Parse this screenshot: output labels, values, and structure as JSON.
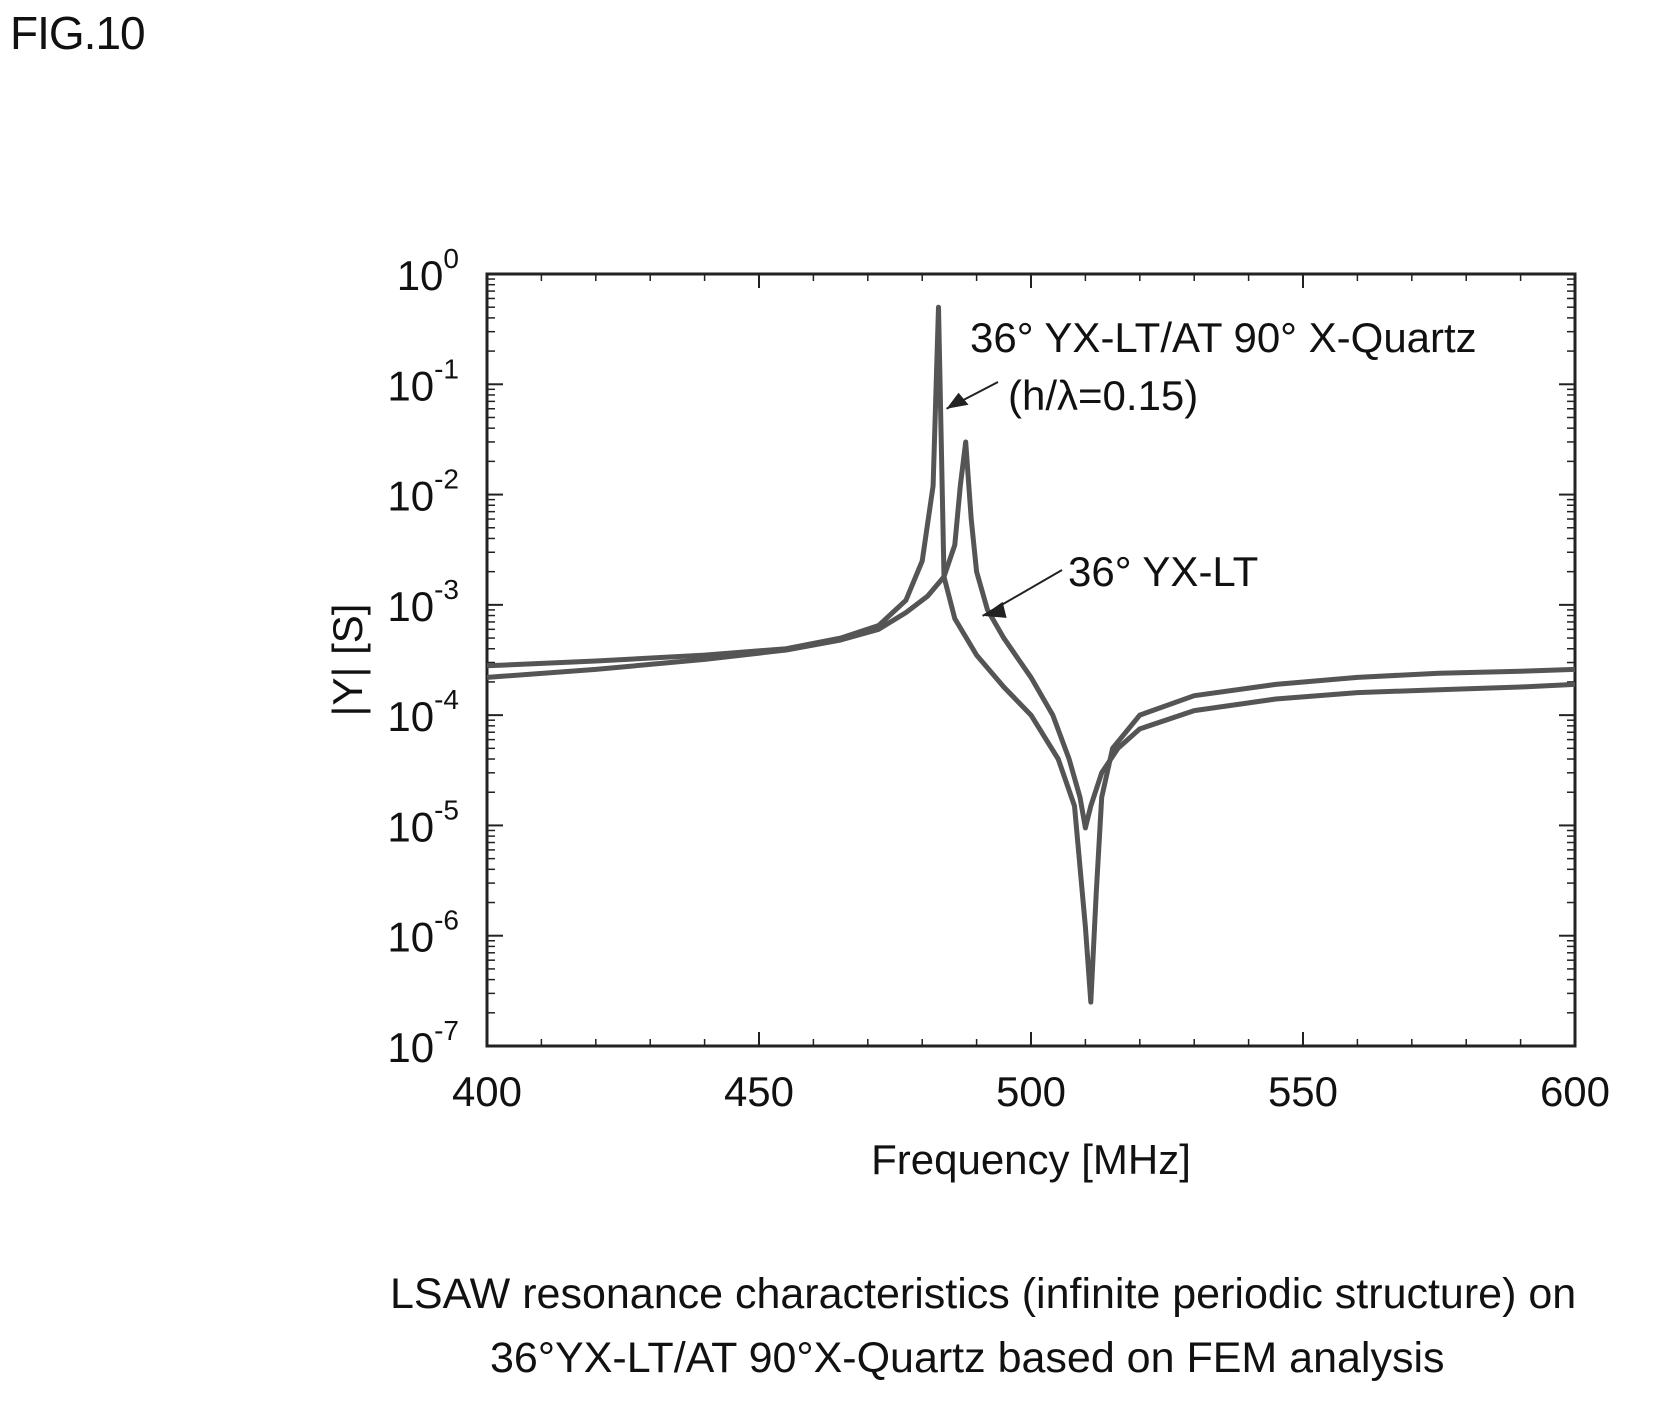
{
  "figure_label": "FIG.10",
  "caption": {
    "line1": "LSAW resonance characteristics (infinite periodic structure) on",
    "line2": "36°YX-LT/AT 90°X-Quartz based on FEM analysis"
  },
  "chart_data": {
    "type": "line",
    "xlabel": "Frequency [MHz]",
    "ylabel": "|Y| [S]",
    "xlim": [
      400,
      600
    ],
    "ylim": [
      1e-07,
      1
    ],
    "yscale": "log",
    "x_ticks": [
      "400",
      "450",
      "500",
      "550",
      "600"
    ],
    "y_ticks": [
      {
        "base": "10",
        "exp": "0"
      },
      {
        "base": "10",
        "exp": "-1"
      },
      {
        "base": "10",
        "exp": "-2"
      },
      {
        "base": "10",
        "exp": "-3"
      },
      {
        "base": "10",
        "exp": "-4"
      },
      {
        "base": "10",
        "exp": "-5"
      },
      {
        "base": "10",
        "exp": "-6"
      },
      {
        "base": "10",
        "exp": "-7"
      }
    ],
    "grid": false,
    "series": [
      {
        "name": "36° YX-LT/AT 90° X-Quartz (h/λ=0.15)",
        "x": [
          400,
          420,
          440,
          455,
          465,
          472,
          477,
          480,
          482,
          483,
          484,
          486,
          490,
          495,
          500,
          505,
          508,
          510,
          511,
          512,
          513,
          515,
          520,
          530,
          545,
          560,
          575,
          590,
          600
        ],
        "y": [
          0.00028,
          0.00031,
          0.00035,
          0.0004,
          0.0005,
          0.00065,
          0.0011,
          0.0025,
          0.012,
          0.5,
          0.0018,
          0.00075,
          0.00035,
          0.00018,
          0.0001,
          4e-05,
          1.5e-05,
          1.2e-06,
          2.5e-07,
          2.5e-06,
          1.8e-05,
          5e-05,
          0.0001,
          0.00015,
          0.00019,
          0.00022,
          0.00024,
          0.00025,
          0.00026
        ],
        "label_lines": [
          "36° YX-LT/AT 90° X-Quartz",
          "(h/λ=0.15)"
        ]
      },
      {
        "name": "36° YX-LT",
        "x": [
          400,
          420,
          440,
          455,
          465,
          472,
          477,
          481,
          484,
          486,
          487,
          488,
          489,
          490,
          492,
          495,
          500,
          504,
          507,
          509,
          510,
          511,
          513,
          516,
          520,
          530,
          545,
          560,
          575,
          590,
          600
        ],
        "y": [
          0.00022,
          0.00026,
          0.00032,
          0.00039,
          0.00048,
          0.0006,
          0.00085,
          0.0012,
          0.0018,
          0.0035,
          0.012,
          0.03,
          0.006,
          0.002,
          0.0009,
          0.0005,
          0.00022,
          0.0001,
          4e-05,
          1.8e-05,
          9.5e-06,
          1.5e-05,
          3e-05,
          5e-05,
          7.5e-05,
          0.00011,
          0.00014,
          0.00016,
          0.00017,
          0.00018,
          0.00019
        ],
        "label_lines": [
          "36° YX-LT"
        ]
      }
    ]
  }
}
